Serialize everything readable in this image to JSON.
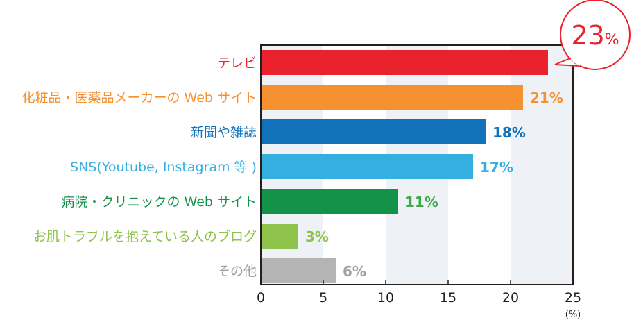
{
  "chart_data": {
    "type": "bar",
    "orientation": "horizontal",
    "categories": [
      "テレビ",
      "化粧品・医薬品メーカーの Web サイト",
      "新聞や雑誌",
      "SNS(Youtube, Instagram 等 )",
      "病院・クリニックの Web サイト",
      "お肌トラブルを抱えている人のブログ",
      "その他"
    ],
    "values": [
      23,
      21,
      18,
      17,
      11,
      3,
      6
    ],
    "data_labels": [
      "23%",
      "21%",
      "18%",
      "17%",
      "11%",
      "3%",
      "6%"
    ],
    "bar_colors": [
      "#e9222e",
      "#f59131",
      "#1172b9",
      "#35aee0",
      "#14924a",
      "#8dc34a",
      "#b4b4b4"
    ],
    "label_colors": [
      "#e9222e",
      "#f59131",
      "#1172b9",
      "#35aee0",
      "#14924a",
      "#8dc34a",
      "#a0a0a0"
    ],
    "value_label_colors": [
      "#e9222e",
      "#f59131",
      "#1172b9",
      "#35aee0",
      "#3daa4a",
      "#8dc34a",
      "#a0a0a0"
    ],
    "xlim": [
      0,
      25
    ],
    "xticks": [
      "0",
      "5",
      "10",
      "15",
      "20",
      "25"
    ],
    "xunit": "(%)",
    "grid": "alternating bands",
    "band_color": "#eef2f6",
    "highlight": "callout bubble on top value"
  }
}
